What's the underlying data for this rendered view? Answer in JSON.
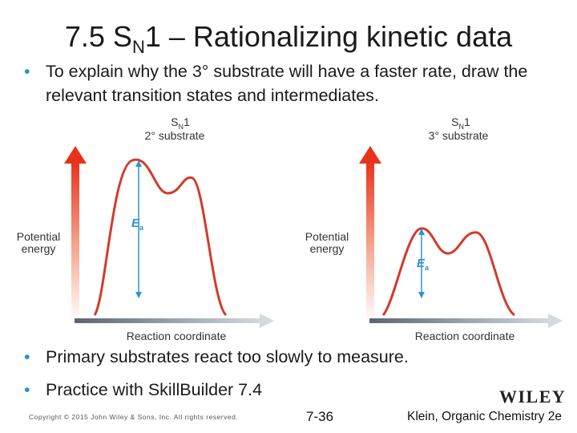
{
  "slide": {
    "title_prefix": "7.5 S",
    "title_sub": "N",
    "title_suffix": "1 – Rationalizing kinetic data",
    "bullet_top": "To explain why the 3° substrate will have a faster rate, draw the relevant transition states and intermediates.",
    "bullets_bottom": [
      "Primary substrates react too slowly to measure.",
      "Practice with SkillBuilder 7.4"
    ],
    "bullet_glyph": "•",
    "copyright": "Copyright © 2015 John Wiley & Sons, Inc. All rights reserved.",
    "page_number": "7-36",
    "credit": "Klein, Organic Chemistry 2e",
    "publisher_logo": "WILEY"
  },
  "diagrams": [
    {
      "mech_prefix": "S",
      "mech_sub": "N",
      "mech_suffix": "1",
      "substrate": "2° substrate",
      "y_label_line1": "Potential",
      "y_label_line2": "energy",
      "x_label": "Reaction coordinate",
      "ea_letter": "E",
      "ea_sub": "a",
      "ea_height": "high"
    },
    {
      "mech_prefix": "S",
      "mech_sub": "N",
      "mech_suffix": "1",
      "substrate": "3° substrate",
      "y_label_line1": "Potential",
      "y_label_line2": "energy",
      "x_label": "Reaction coordinate",
      "ea_letter": "E",
      "ea_sub": "a",
      "ea_height": "low"
    }
  ],
  "colors": {
    "bullet": "#2f8ecf",
    "curve": "#d33a2a",
    "ea_arrow": "#2c93d1",
    "axis_arrow": "#e8321c"
  }
}
